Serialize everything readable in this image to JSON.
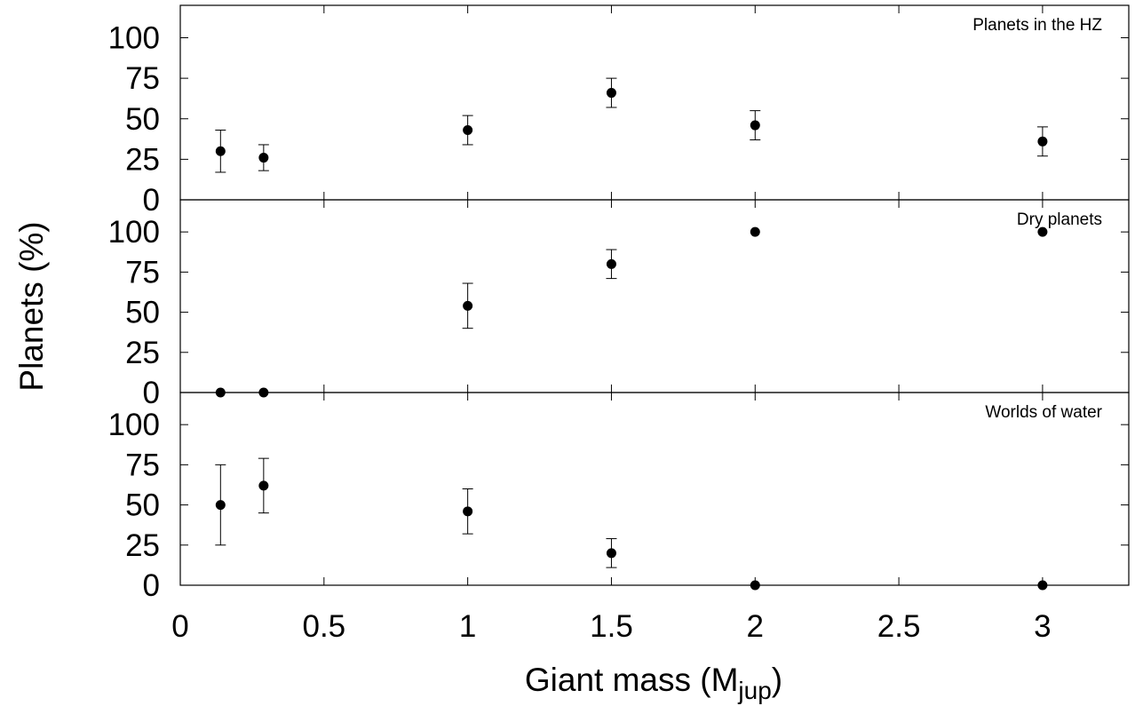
{
  "chart_data": {
    "type": "scatter",
    "xlabel": "Giant mass (M",
    "xlabel_sub": "jup",
    "xlabel_close": ")",
    "ylabel": "Planets (%)",
    "xlim": [
      0,
      3.3
    ],
    "ylim": [
      0,
      120
    ],
    "x_ticks": [
      0,
      0.5,
      1,
      1.5,
      2,
      2.5,
      3
    ],
    "x_tick_labels": [
      "0",
      "0.5",
      "1",
      "1.5",
      "2",
      "2.5",
      "3"
    ],
    "y_ticks": [
      0,
      25,
      50,
      75,
      100
    ],
    "y_tick_labels": [
      "0",
      "25",
      "50",
      "75",
      "100"
    ],
    "grid": false,
    "error_bars": true,
    "panels": [
      {
        "title": "Planets in the HZ",
        "points": [
          {
            "x": 0.14,
            "y": 30,
            "err": 13
          },
          {
            "x": 0.29,
            "y": 26,
            "err": 8
          },
          {
            "x": 1.0,
            "y": 43,
            "err": 9
          },
          {
            "x": 1.5,
            "y": 66,
            "err": 9
          },
          {
            "x": 2.0,
            "y": 46,
            "err": 9
          },
          {
            "x": 3.0,
            "y": 36,
            "err": 9
          }
        ]
      },
      {
        "title": "Dry planets",
        "points": [
          {
            "x": 0.14,
            "y": 0,
            "err": 0
          },
          {
            "x": 0.29,
            "y": 0,
            "err": 0
          },
          {
            "x": 1.0,
            "y": 54,
            "err": 14
          },
          {
            "x": 1.5,
            "y": 80,
            "err": 9
          },
          {
            "x": 2.0,
            "y": 100,
            "err": 0
          },
          {
            "x": 3.0,
            "y": 100,
            "err": 0
          }
        ]
      },
      {
        "title": "Worlds of water",
        "points": [
          {
            "x": 0.14,
            "y": 50,
            "err": 25
          },
          {
            "x": 0.29,
            "y": 62,
            "err": 17
          },
          {
            "x": 1.0,
            "y": 46,
            "err": 14
          },
          {
            "x": 1.5,
            "y": 20,
            "err": 9
          },
          {
            "x": 2.0,
            "y": 0,
            "err": 0
          },
          {
            "x": 3.0,
            "y": 0,
            "err": 0
          }
        ]
      }
    ]
  }
}
